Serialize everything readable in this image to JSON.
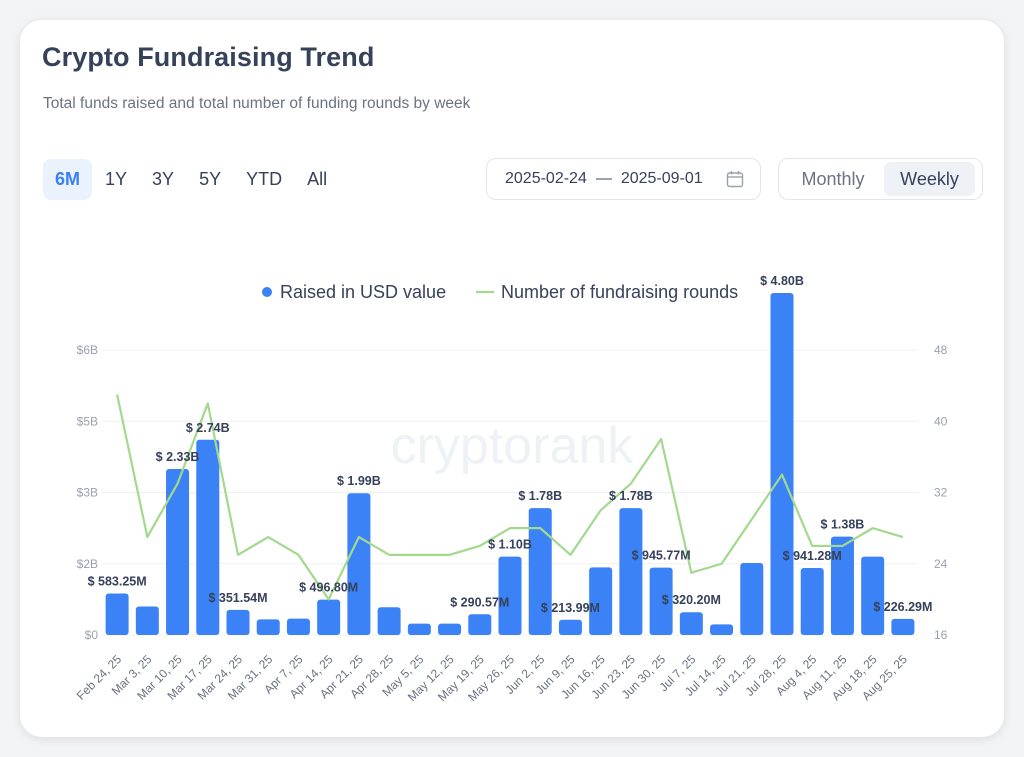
{
  "header": {
    "title": "Crypto Fundraising Trend",
    "subtitle": "Total funds raised and total number of funding rounds by week"
  },
  "ranges": [
    "6M",
    "1Y",
    "3Y",
    "5Y",
    "YTD",
    "All"
  ],
  "active_range": "6M",
  "date_range": {
    "start": "2025-02-24",
    "separator": "—",
    "end": "2025-09-01",
    "icon": "calendar-icon"
  },
  "period_toggle": {
    "options": [
      "Monthly",
      "Weekly"
    ],
    "active": "Weekly"
  },
  "watermark": "cryptorank",
  "colors": {
    "bar": "#3b82f6",
    "line": "#a3d98c",
    "accent": "#3b7ff5",
    "text": "#36415a"
  },
  "chart_data": {
    "type": "bar",
    "legend": {
      "position": "top-center",
      "entries": [
        "Raised in USD value",
        "Number of fundraising rounds"
      ]
    },
    "categories": [
      "Feb 24, 25",
      "Mar 3, 25",
      "Mar 10, 25",
      "Mar 17, 25",
      "Mar 24, 25",
      "Mar 31, 25",
      "Apr 7, 25",
      "Apr 14, 25",
      "Apr 21, 25",
      "Apr 28, 25",
      "May 5, 25",
      "May 12, 25",
      "May 19, 25",
      "May 26, 25",
      "Jun 2, 25",
      "Jun 9, 25",
      "Jun 16, 25",
      "Jun 23, 25",
      "Jun 30, 25",
      "Jul 7, 25",
      "Jul 14, 25",
      "Jul 21, 25",
      "Jul 28, 25",
      "Aug 4, 25",
      "Aug 11, 25",
      "Aug 18, 25",
      "Aug 25, 25"
    ],
    "y_left": {
      "ticks": [
        0,
        1,
        2,
        3,
        4
      ],
      "tick_labels": [
        "$0",
        "$2B",
        "$3B",
        "$5B",
        "$6B"
      ]
    },
    "y_right": {
      "range": [
        16,
        48
      ],
      "ticks": [
        16,
        24,
        32,
        40,
        48
      ]
    },
    "series": [
      {
        "name": "Raised in USD value",
        "type": "bar",
        "values": [
          0.583,
          0.4,
          2.33,
          2.74,
          0.352,
          0.22,
          0.23,
          0.497,
          1.99,
          0.39,
          0.16,
          0.16,
          0.291,
          1.1,
          1.78,
          0.214,
          0.95,
          1.78,
          0.946,
          0.32,
          0.15,
          1.01,
          4.8,
          0.941,
          1.38,
          1.1,
          0.226
        ]
      },
      {
        "name": "Number of fundraising rounds",
        "type": "line",
        "values": [
          43,
          27,
          33,
          42,
          25,
          27,
          25,
          20,
          27,
          25,
          25,
          25,
          26,
          28,
          28,
          25,
          30,
          33,
          38,
          23,
          24,
          29,
          34,
          26,
          26,
          28,
          27
        ]
      }
    ],
    "data_labels": [
      {
        "index": 0,
        "text": "$ 583.25M"
      },
      {
        "index": 2,
        "text": "$ 2.33B"
      },
      {
        "index": 3,
        "text": "$ 2.74B"
      },
      {
        "index": 4,
        "text": "$ 351.54M"
      },
      {
        "index": 7,
        "text": "$ 496.80M"
      },
      {
        "index": 8,
        "text": "$ 1.99B"
      },
      {
        "index": 12,
        "text": "$ 290.57M"
      },
      {
        "index": 13,
        "text": "$ 1.10B"
      },
      {
        "index": 14,
        "text": "$ 1.78B"
      },
      {
        "index": 15,
        "text": "$ 213.99M"
      },
      {
        "index": 17,
        "text": "$ 1.78B"
      },
      {
        "index": 18,
        "text": "$ 945.77M"
      },
      {
        "index": 19,
        "text": "$ 320.20M"
      },
      {
        "index": 22,
        "text": "$ 4.80B"
      },
      {
        "index": 23,
        "text": "$ 941.28M"
      },
      {
        "index": 24,
        "text": "$ 1.38B"
      },
      {
        "index": 26,
        "text": "$ 226.29M"
      }
    ]
  }
}
